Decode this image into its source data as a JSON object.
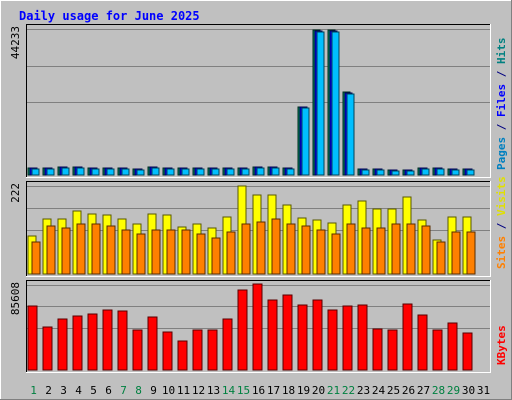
{
  "chart_data": {
    "type": "bar",
    "title": "Daily usage for June 2025",
    "categories": [
      "1",
      "2",
      "3",
      "4",
      "5",
      "6",
      "7",
      "8",
      "9",
      "10",
      "11",
      "12",
      "13",
      "14",
      "15",
      "16",
      "17",
      "18",
      "19",
      "20",
      "21",
      "22",
      "23",
      "24",
      "25",
      "26",
      "27",
      "28",
      "29",
      "30",
      "31"
    ],
    "weekend_days": [
      "1",
      "7",
      "8",
      "14",
      "15",
      "21",
      "22",
      "28",
      "29"
    ],
    "panels": [
      {
        "id": "pages-files-hits",
        "max_label": "44233",
        "ymax": 44233,
        "right_labels": [
          {
            "text": "Pages",
            "color": "#0080c0"
          },
          {
            "text": " / ",
            "color": "#000080"
          },
          {
            "text": "Files",
            "color": "#0000ff"
          },
          {
            "text": " / ",
            "color": "#000080"
          },
          {
            "text": "Hits",
            "color": "#008080"
          }
        ],
        "series": [
          {
            "name": "Hits",
            "color": "#00805c",
            "values": [
              2000,
              2000,
              2300,
              2300,
              2000,
              2000,
              2000,
              1700,
              2300,
              2000,
              2000,
              2000,
              2000,
              2000,
              2000,
              2300,
              2300,
              2000,
              20500,
              43800,
              43800,
              25000,
              1700,
              1700,
              1400,
              1400,
              2000,
              2000,
              1700,
              1700,
              0
            ]
          },
          {
            "name": "Files",
            "color": "#0000ff",
            "values": [
              2000,
              2000,
              2300,
              2300,
              2000,
              2000,
              2000,
              1700,
              2300,
              2000,
              2000,
              2000,
              2000,
              2000,
              2000,
              2300,
              2300,
              2000,
              20500,
              43500,
              43500,
              24800,
              1700,
              1700,
              1400,
              1400,
              2000,
              2000,
              1700,
              1700,
              0
            ]
          },
          {
            "name": "Pages",
            "color": "#00bfff",
            "values": [
              1800,
              1800,
              2000,
              2000,
              1800,
              1800,
              1800,
              1500,
              2000,
              1800,
              1800,
              1800,
              1800,
              1800,
              1800,
              2000,
              2000,
              1800,
              20300,
              43300,
              43300,
              24500,
              1500,
              1500,
              1300,
              1300,
              1800,
              1800,
              1500,
              1500,
              0
            ]
          }
        ]
      },
      {
        "id": "visits-sites",
        "max_label": "222",
        "ymax": 222,
        "right_labels": [
          {
            "text": "Sites",
            "color": "#ff8000"
          },
          {
            "text": " / ",
            "color": "#000080"
          },
          {
            "text": "Visits",
            "color": "#e0e000"
          }
        ],
        "series": [
          {
            "name": "Visits",
            "color": "#ffff00",
            "values": [
              95,
              140,
              138,
              160,
              152,
              148,
              138,
              125,
              152,
              150,
              118,
              125,
              115,
              145,
              222,
              200,
              200,
              175,
              142,
              135,
              128,
              175,
              185,
              165,
              165,
              195,
              135,
              85,
              145,
              145,
              0
            ]
          },
          {
            "name": "Sites",
            "color": "#ff8000",
            "values": [
              80,
              120,
              115,
              125,
              125,
              122,
              110,
              100,
              110,
              112,
              110,
              102,
              92,
              105,
              125,
              130,
              140,
              127,
              120,
              112,
              102,
              127,
              117,
              117,
              125,
              127,
              120,
              80,
              107,
              105,
              0
            ]
          }
        ]
      },
      {
        "id": "kbytes",
        "max_label": "85608",
        "ymax": 85608,
        "right_labels": [
          {
            "text": "KBytes",
            "color": "#ff0000"
          }
        ],
        "series": [
          {
            "name": "KBytes",
            "color": "#ff0000",
            "values": [
              64000,
              43000,
              51000,
              54000,
              56000,
              60000,
              59000,
              40000,
              53000,
              38000,
              29000,
              40000,
              40000,
              51000,
              81000,
              87000,
              70000,
              76000,
              65000,
              71000,
              60000,
              64000,
              65000,
              41000,
              40000,
              66000,
              55000,
              40000,
              47000,
              37000,
              0
            ]
          }
        ]
      }
    ]
  }
}
